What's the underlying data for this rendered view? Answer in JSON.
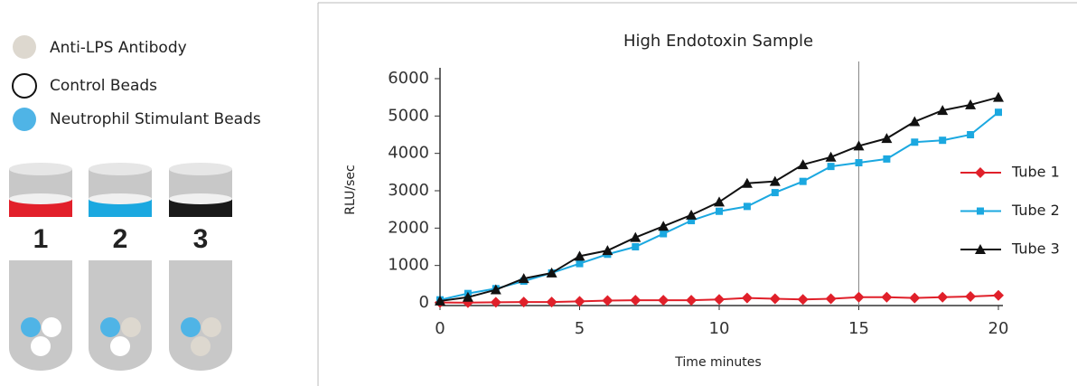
{
  "legend_items": [
    "Anti-LPS Antibody",
    "Control Beads",
    "Neutrophil Stimulant Beads"
  ],
  "tubes": [
    "1",
    "2",
    "3"
  ],
  "chart_data": {
    "type": "line",
    "title": "High Endotoxin Sample",
    "x_label": "Time minutes",
    "y_label": "RLU/sec",
    "x": [
      0,
      1,
      2,
      3,
      4,
      5,
      6,
      7,
      8,
      9,
      10,
      11,
      12,
      13,
      14,
      15,
      16,
      17,
      18,
      19,
      20
    ],
    "series": [
      {
        "name": "Tube 1",
        "color": "#e0202a",
        "marker": "diamond",
        "values": [
          10,
          5,
          15,
          20,
          20,
          40,
          60,
          70,
          70,
          70,
          90,
          130,
          110,
          90,
          110,
          150,
          150,
          130,
          150,
          170,
          200
        ]
      },
      {
        "name": "Tube 2",
        "color": "#1ba8e0",
        "marker": "square",
        "values": [
          80,
          250,
          380,
          580,
          800,
          1050,
          1300,
          1500,
          1850,
          2200,
          2450,
          2580,
          2950,
          3250,
          3650,
          3750,
          3850,
          4300,
          4350,
          4500,
          5100
        ]
      },
      {
        "name": "Tube 3",
        "color": "#111111",
        "marker": "triangle",
        "values": [
          50,
          150,
          350,
          650,
          800,
          1250,
          1400,
          1750,
          2050,
          2350,
          2700,
          3200,
          3250,
          3700,
          3900,
          4200,
          4400,
          4850,
          5150,
          5300,
          5500
        ]
      }
    ],
    "xlim": [
      0,
      20
    ],
    "ylim": [
      0,
      6000
    ],
    "xticks": [
      0,
      5,
      10,
      15,
      20
    ],
    "yticks": [
      0,
      1000,
      2000,
      3000,
      4000,
      5000,
      6000
    ],
    "vline": 15,
    "legend": "right"
  }
}
